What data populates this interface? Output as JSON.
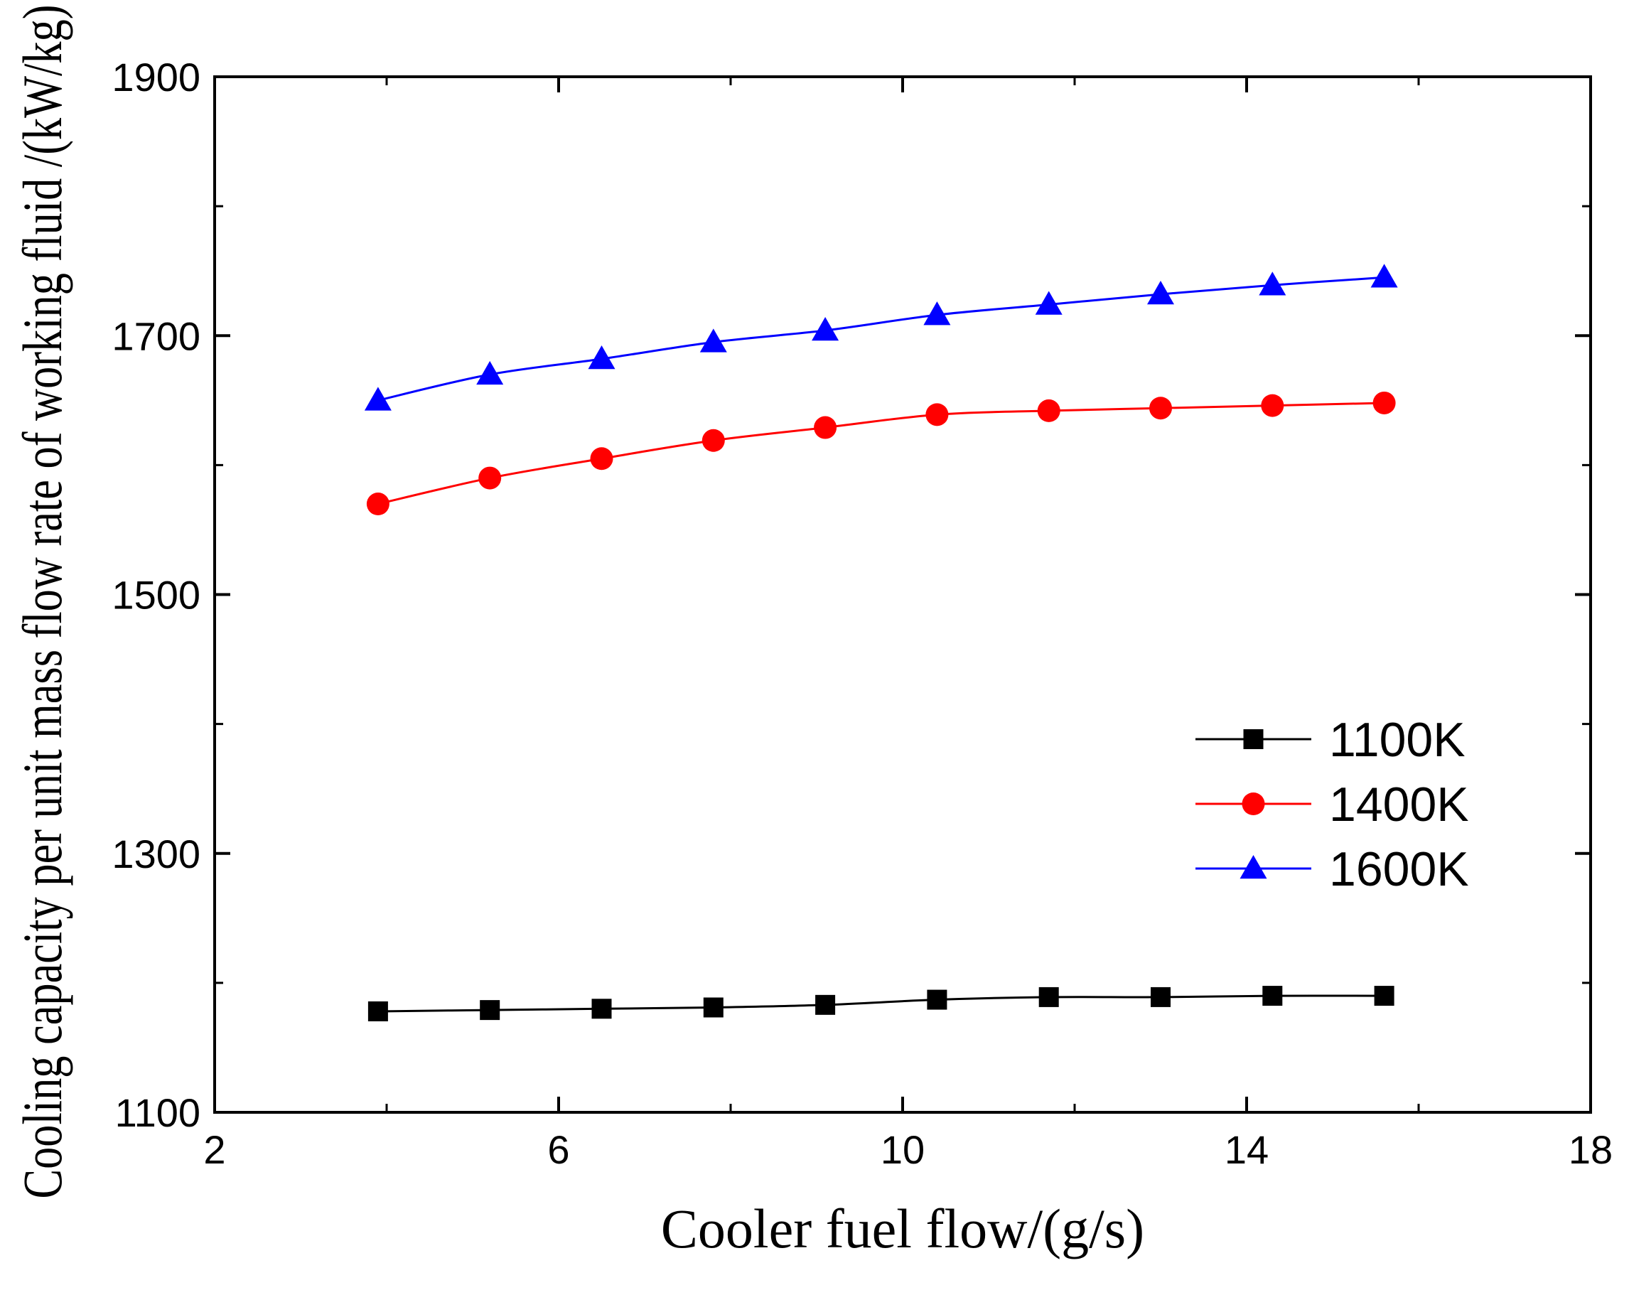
{
  "chart_data": {
    "type": "line",
    "xlabel": "Cooler fuel flow/(g/s)",
    "ylabel": "Cooling capacity per unit mass flow rate of working fluid /(kW/kg)",
    "xlim": [
      2,
      18
    ],
    "ylim": [
      1100,
      1900
    ],
    "x_ticks": [
      "2",
      "6",
      "10",
      "14",
      "18"
    ],
    "y_ticks": [
      "1100",
      "1300",
      "1500",
      "1700",
      "1900"
    ],
    "grid": false,
    "legend_position": "right",
    "x": [
      3.9,
      5.2,
      6.5,
      7.8,
      9.1,
      10.4,
      11.7,
      13.0,
      14.3,
      15.6
    ],
    "series": [
      {
        "name": "1100K",
        "color": "#000000",
        "marker": "square",
        "values": [
          1178,
          1179,
          1180,
          1181,
          1183,
          1187,
          1189,
          1189,
          1190,
          1190
        ]
      },
      {
        "name": "1400K",
        "color": "#ff0000",
        "marker": "circle",
        "values": [
          1570,
          1590,
          1605,
          1619,
          1629,
          1639,
          1642,
          1644,
          1646,
          1648
        ]
      },
      {
        "name": "1600K",
        "color": "#0000ff",
        "marker": "triangle",
        "values": [
          1650,
          1670,
          1682,
          1695,
          1704,
          1716,
          1724,
          1732,
          1739,
          1745
        ]
      }
    ]
  }
}
